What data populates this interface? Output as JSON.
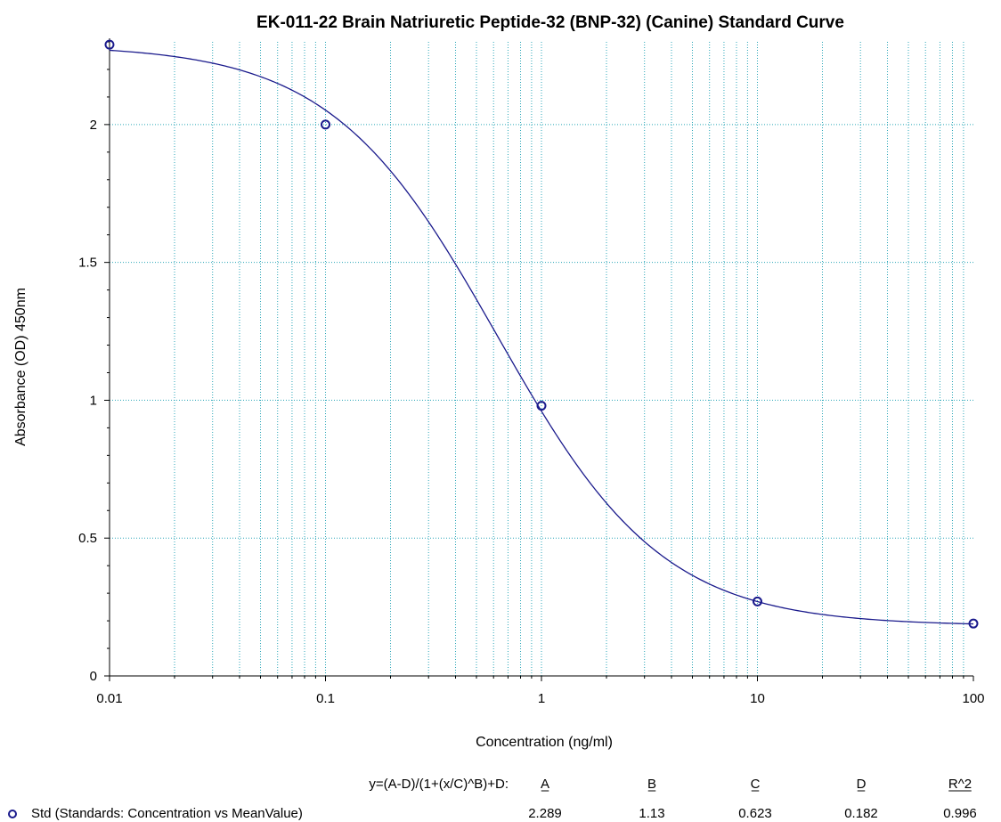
{
  "chart_data": {
    "type": "scatter",
    "title": "EK-011-22 Brain Natriuretic Peptide-32 (BNP-32) (Canine) Standard Curve",
    "xlabel": "Concentration (ng/ml)",
    "ylabel": "Absorbance (OD) 450nm",
    "x_scale": "log",
    "xlim": [
      0.01,
      100
    ],
    "ylim": [
      0,
      2.3
    ],
    "x_ticks": [
      0.01,
      0.1,
      1,
      10,
      100
    ],
    "x_tick_labels": [
      "0.01",
      "0.1",
      "1",
      "10",
      "100"
    ],
    "y_ticks": [
      0,
      0.5,
      1,
      1.5,
      2
    ],
    "y_tick_labels": [
      "0",
      "0.5",
      "1",
      "1.5",
      "2"
    ],
    "grid": true,
    "colors": {
      "points": "#1a1a8c",
      "curve": "#1a1a8c",
      "grid": "#2aa6b8"
    },
    "series": [
      {
        "name": "Std (Standards: Concentration vs MeanValue)",
        "marker": "circle",
        "points": [
          {
            "x": 0.01,
            "y": 2.29
          },
          {
            "x": 0.1,
            "y": 2.0
          },
          {
            "x": 1,
            "y": 0.98
          },
          {
            "x": 10,
            "y": 0.27
          },
          {
            "x": 100,
            "y": 0.19
          }
        ]
      }
    ],
    "fit": {
      "equation": "y=(A-D)/(1+(x/C)^B)+D:",
      "headers": [
        "A",
        "B",
        "C",
        "D",
        "R^2"
      ],
      "values": [
        "2.289",
        "1.13",
        "0.623",
        "0.182",
        "0.996"
      ],
      "params": {
        "A": 2.289,
        "B": 1.13,
        "C": 0.623,
        "D": 0.182
      }
    }
  }
}
